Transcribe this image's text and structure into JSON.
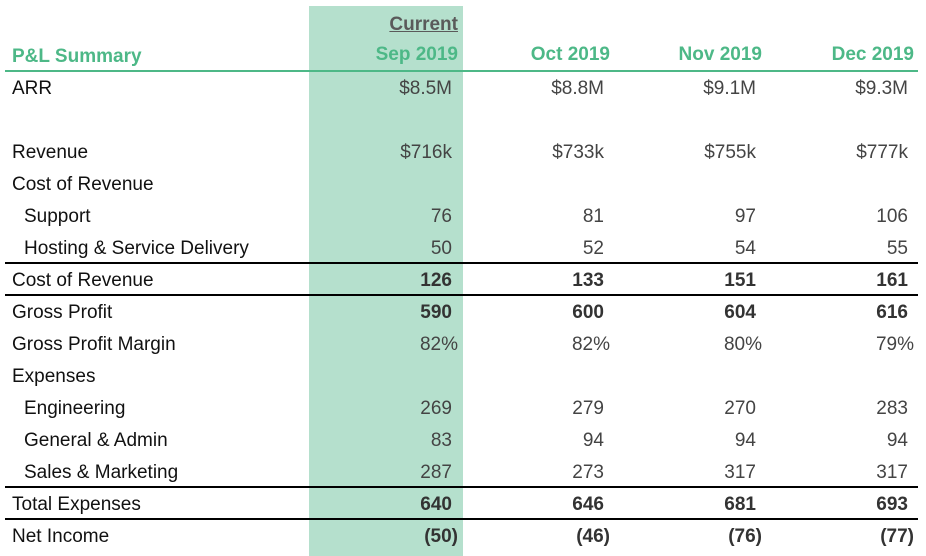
{
  "header": {
    "title": "P&L Summary",
    "current_label": "Current",
    "columns": [
      "Sep 2019",
      "Oct 2019",
      "Nov 2019",
      "Dec 2019"
    ]
  },
  "colors": {
    "accent": "#4db887",
    "highlight": "#b5e0cd"
  },
  "rows": [
    {
      "label": "ARR",
      "values": [
        "$8.5M",
        "$8.8M",
        "$9.1M",
        "$9.3M"
      ]
    },
    {
      "label": "Revenue",
      "values": [
        "$716k",
        "$733k",
        "$755k",
        "$777k"
      ]
    },
    {
      "label": "Cost of Revenue",
      "values": []
    },
    {
      "label": "Support",
      "values": [
        "76",
        "81",
        "97",
        "106"
      ]
    },
    {
      "label": "Hosting & Service Delivery",
      "values": [
        "50",
        "52",
        "54",
        "55"
      ]
    },
    {
      "label": "Cost of Revenue",
      "values": [
        "126",
        "133",
        "151",
        "161"
      ]
    },
    {
      "label": "Gross Profit",
      "values": [
        "590",
        "600",
        "604",
        "616"
      ]
    },
    {
      "label": "Gross Profit Margin",
      "values": [
        "82%",
        "82%",
        "80%",
        "79%"
      ]
    },
    {
      "label": "Expenses",
      "values": []
    },
    {
      "label": "Engineering",
      "values": [
        "269",
        "279",
        "270",
        "283"
      ]
    },
    {
      "label": "General & Admin",
      "values": [
        "83",
        "94",
        "94",
        "94"
      ]
    },
    {
      "label": "Sales & Marketing",
      "values": [
        "287",
        "273",
        "317",
        "317"
      ]
    },
    {
      "label": "Total Expenses",
      "values": [
        "640",
        "646",
        "681",
        "693"
      ]
    },
    {
      "label": "Net Income",
      "values": [
        "(50)",
        "(46)",
        "(76)",
        "(77)"
      ]
    }
  ]
}
